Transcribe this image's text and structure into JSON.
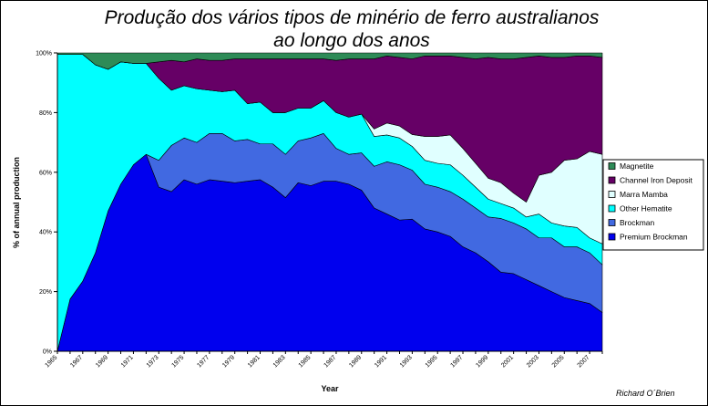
{
  "chart_data": {
    "type": "area",
    "stacked": true,
    "percent": true,
    "title_line1": "Produção dos vários tipos de minério de ferro australianos",
    "title_line2": "ao longo dos anos",
    "xlabel": "Year",
    "ylabel": "% of annual production",
    "credit": "Richard O´Brien",
    "ylim": [
      0,
      100
    ],
    "y_ticks": [
      "0%",
      "20%",
      "40%",
      "60%",
      "80%",
      "100%"
    ],
    "x_tick_labels": [
      "1965",
      "1967",
      "1969",
      "1971",
      "1973",
      "1975",
      "1977",
      "1979",
      "1981",
      "1983",
      "1985",
      "1987",
      "1989",
      "1991",
      "1993",
      "1995",
      "1997",
      "1999",
      "2001",
      "2003",
      "2005",
      "2007"
    ],
    "grid": false,
    "legend_position": "right",
    "plot_background": "#c0c0c0",
    "x": [
      1965,
      1966,
      1967,
      1968,
      1969,
      1970,
      1971,
      1972,
      1973,
      1974,
      1975,
      1976,
      1977,
      1978,
      1979,
      1980,
      1981,
      1982,
      1983,
      1984,
      1985,
      1986,
      1987,
      1988,
      1989,
      1990,
      1991,
      1992,
      1993,
      1994,
      1995,
      1996,
      1997,
      1998,
      1999,
      2000,
      2001,
      2002,
      2003,
      2004,
      2005,
      2006,
      2007,
      2008
    ],
    "series": [
      {
        "name": "Premium Brockman",
        "color": "#0000ee",
        "values": [
          0,
          17.5,
          23.5,
          33,
          47,
          56,
          62.5,
          66,
          55,
          53.5,
          57.5,
          56,
          57.5,
          57,
          56.5,
          57,
          57.5,
          55,
          51.5,
          56.5,
          55.5,
          57,
          57,
          56,
          54,
          48,
          46,
          44,
          44.5,
          41,
          40,
          38.5,
          35,
          33,
          30,
          26.5,
          26,
          24,
          22,
          20,
          18,
          17,
          16,
          13
        ]
      },
      {
        "name": "Brockman",
        "color": "#4169e1",
        "values": [
          0,
          0,
          0,
          0,
          0,
          0,
          0,
          0,
          9,
          15.5,
          14,
          14,
          15.5,
          16,
          14,
          14,
          12,
          14.5,
          14.5,
          14,
          16,
          16,
          11,
          10,
          12.5,
          14,
          17.5,
          18.5,
          16.5,
          15,
          15,
          15,
          16,
          15,
          15,
          18,
          17,
          17,
          16,
          18,
          17,
          18,
          17,
          16
        ]
      },
      {
        "name": "Other Hematite",
        "color": "#00ffff",
        "values": [
          99.5,
          82,
          76,
          63,
          47.5,
          41,
          34,
          30.5,
          27.5,
          18.5,
          17.5,
          18,
          14.5,
          14,
          17,
          12,
          14,
          10.5,
          14,
          11,
          10,
          11,
          12,
          12.5,
          13,
          10,
          9,
          9,
          8,
          8,
          8,
          9,
          8,
          7,
          6,
          5,
          5,
          4,
          8,
          5,
          7,
          6.5,
          5,
          7
        ]
      },
      {
        "name": "Marra Mamba",
        "color": "#e0ffff",
        "values": [
          0,
          0,
          0,
          0,
          0,
          0,
          0,
          0,
          0,
          0,
          0,
          0,
          0,
          0,
          0,
          0,
          0,
          0,
          0,
          0,
          0,
          0,
          0,
          0,
          0,
          2.5,
          4,
          4,
          4,
          8,
          9,
          10,
          9,
          8,
          7,
          7,
          5,
          5,
          13,
          17,
          22,
          23,
          29,
          30
        ]
      },
      {
        "name": "Channel Iron Deposit",
        "color": "#660066",
        "values": [
          0,
          0,
          0,
          0,
          0,
          0,
          0,
          0,
          5.5,
          10,
          8,
          10,
          10,
          10.5,
          10.5,
          15,
          14.5,
          18,
          18,
          16.5,
          16.5,
          14,
          17.5,
          19.5,
          18.5,
          23.5,
          22.5,
          23,
          25.5,
          27,
          27,
          26.5,
          30.5,
          35,
          40.5,
          41.5,
          45,
          48.5,
          40,
          38.5,
          34.5,
          34.5,
          32,
          32.5
        ]
      },
      {
        "name": "Magnetite",
        "color": "#2e8b57",
        "values": [
          0.5,
          0.5,
          0.5,
          4,
          5.5,
          3,
          3.5,
          3.5,
          3,
          2.5,
          3,
          2,
          2.5,
          2.5,
          2,
          2,
          2,
          2,
          2,
          2,
          2,
          2,
          2.5,
          2,
          2,
          2,
          1,
          1.5,
          2,
          1,
          1,
          1,
          1.5,
          2,
          1.5,
          2,
          2,
          1.5,
          1,
          1.5,
          1.5,
          1,
          1,
          1.5
        ]
      }
    ]
  }
}
